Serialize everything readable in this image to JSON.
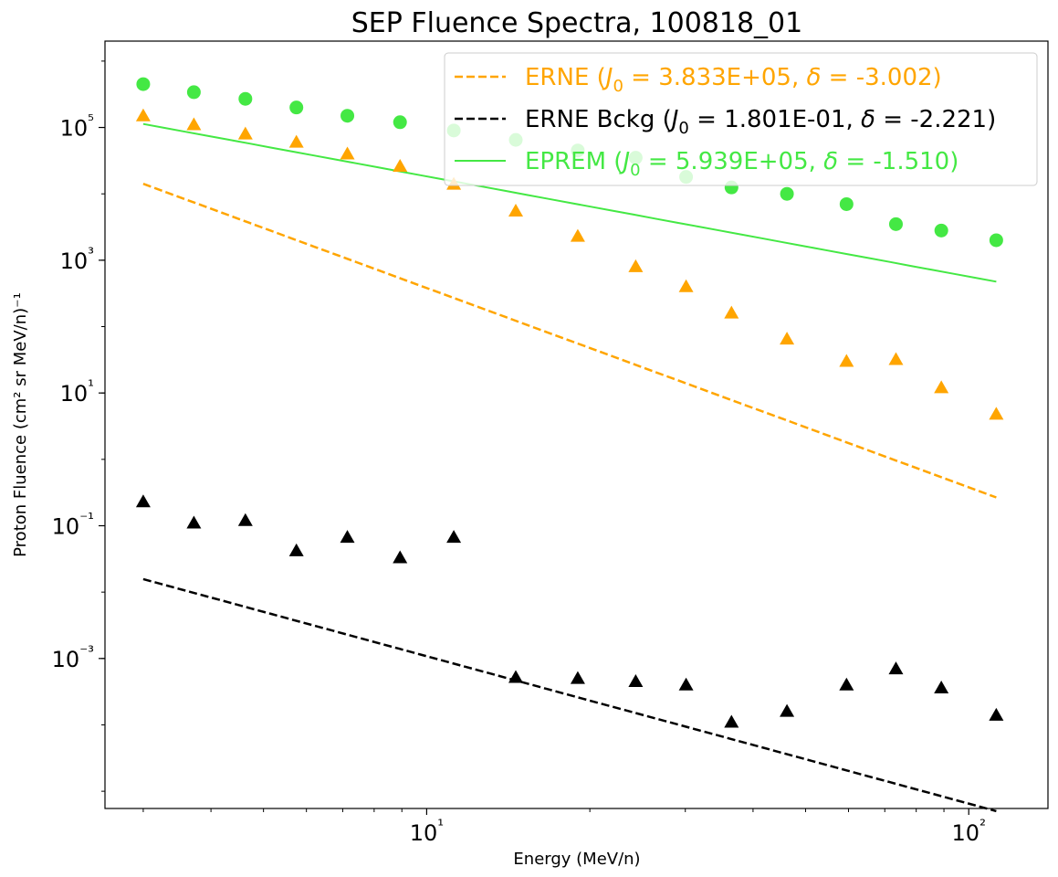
{
  "chart_data": {
    "type": "scatter",
    "title": "SEP Fluence Spectra, 100818_01",
    "xlabel": "Energy (MeV/n)",
    "ylabel": "Proton Fluence (cm² sr MeV/n)⁻¹",
    "xscale": "log",
    "yscale": "log",
    "xlim": [
      2.55,
      140
    ],
    "ylim": [
      5.5e-06,
      2000000
    ],
    "grid": false,
    "legend_position": "top-right",
    "x_ticks": [
      {
        "value": 10,
        "label": "10¹"
      },
      {
        "value": 100,
        "label": "10²"
      }
    ],
    "y_ticks": [
      {
        "value": 0.001,
        "label": "10⁻³"
      },
      {
        "value": 0.1,
        "label": "10⁻¹"
      },
      {
        "value": 10,
        "label": "10¹"
      },
      {
        "value": 1000,
        "label": "10³"
      },
      {
        "value": 100000,
        "label": "10⁵"
      }
    ],
    "series": [
      {
        "key": "erne",
        "color": "#FFA500",
        "marker": "triangle",
        "x": [
          3.0,
          3.72,
          4.63,
          5.75,
          7.14,
          8.93,
          11.22,
          14.6,
          19.0,
          24.3,
          30.1,
          36.5,
          46.2,
          59.5,
          73.4,
          89.0,
          112.4
        ],
        "y": [
          150000,
          110000,
          80000,
          60000,
          40000,
          26000,
          14000,
          5500,
          2300,
          800,
          400,
          160,
          65,
          30,
          32,
          12,
          4.8
        ]
      },
      {
        "key": "erne_bckg",
        "color": "#000000",
        "marker": "triangle",
        "x": [
          3.0,
          3.72,
          4.63,
          5.75,
          7.14,
          8.93,
          11.22,
          14.6,
          19.0,
          24.3,
          30.1,
          36.5,
          46.2,
          59.5,
          73.4,
          89.0,
          112.4
        ],
        "y": [
          0.23,
          0.11,
          0.12,
          0.042,
          0.067,
          0.033,
          0.067,
          0.00052,
          0.0005,
          0.00045,
          0.0004,
          0.00011,
          0.00016,
          0.0004,
          0.0007,
          0.00036,
          0.00014
        ]
      },
      {
        "key": "eprem",
        "color": "#44E844",
        "marker": "circle",
        "x": [
          3.0,
          3.72,
          4.63,
          5.75,
          7.14,
          8.93,
          11.22,
          14.6,
          19.0,
          24.3,
          30.1,
          36.5,
          46.2,
          59.5,
          73.4,
          89.0,
          112.4
        ],
        "y": [
          450000,
          340000,
          270000,
          200000,
          150000,
          120000,
          90000,
          65000,
          45000,
          35000,
          18000,
          12500,
          10000,
          7000,
          3500,
          2800,
          2000
        ]
      }
    ],
    "fits": [
      {
        "key": "erne_fit",
        "color": "#FFA500",
        "style": "dashed",
        "J0": 383300,
        "delta": -3.002,
        "x_range": [
          3.0,
          112.4
        ]
      },
      {
        "key": "erne_bckg_fit",
        "color": "#000000",
        "style": "dashed",
        "J0": 0.1801,
        "delta": -2.221,
        "x_range": [
          3.0,
          112.4
        ]
      },
      {
        "key": "eprem_fit",
        "color": "#44E844",
        "style": "solid",
        "J0": 593900,
        "delta": -1.51,
        "x_range": [
          3.0,
          112.4
        ]
      }
    ],
    "legend": [
      {
        "key": "erne_fit",
        "color": "#FFA500",
        "text_color": "#FFA500",
        "style": "dashed",
        "name": "ERNE",
        "j0": "3.833E+05",
        "delta": "-3.002"
      },
      {
        "key": "erne_bckg_fit",
        "color": "#000000",
        "text_color": "#000000",
        "style": "dashed",
        "name": "ERNE Bckg",
        "j0": "1.801E-01",
        "delta": "-2.221"
      },
      {
        "key": "eprem_fit",
        "color": "#44E844",
        "text_color": "#44E844",
        "style": "solid",
        "name": "EPREM",
        "j0": "5.939E+05",
        "delta": "-1.510"
      }
    ]
  }
}
